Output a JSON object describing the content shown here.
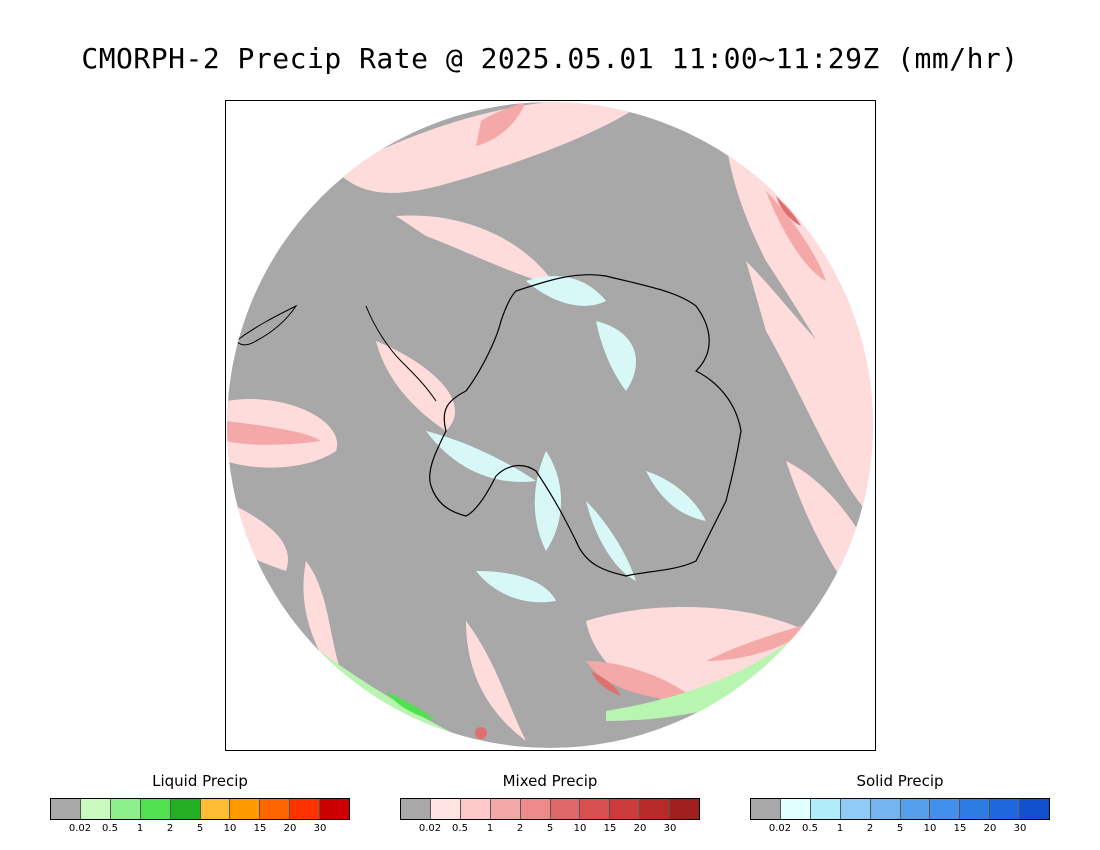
{
  "title": "CMORPH-2 Precip Rate @ 2025.05.01 11:00~11:29Z (mm/hr)",
  "colors": {
    "ocean_no_precip": "#a8a8a8",
    "mixed_light": "#ffdcdc",
    "mixed_mid": "#f5a8a8",
    "mixed_dark": "#e07070",
    "solid_light": "#d8f8f8",
    "liquid_light": "#b8f5b0",
    "liquid_mid": "#50e050",
    "coastline": "#000000"
  },
  "legends": [
    {
      "title": "Liquid Precip",
      "colors": [
        "#a8a8a8",
        "#c8fac0",
        "#8cf08c",
        "#50e050",
        "#22b022",
        "#ffbb33",
        "#ff9900",
        "#ff6600",
        "#ff3300",
        "#cc0000"
      ],
      "ticks": [
        "0.02",
        "0.5",
        "1",
        "2",
        "5",
        "10",
        "15",
        "20",
        "30"
      ]
    },
    {
      "title": "Mixed Precip",
      "colors": [
        "#a8a8a8",
        "#ffe4e4",
        "#fcc8c8",
        "#f5a8a8",
        "#ed8a8a",
        "#e06868",
        "#d85050",
        "#cc3c3c",
        "#b82a2a",
        "#a02020"
      ],
      "ticks": [
        "0.02",
        "0.5",
        "1",
        "2",
        "5",
        "10",
        "15",
        "20",
        "30"
      ]
    },
    {
      "title": "Solid Precip",
      "colors": [
        "#a8a8a8",
        "#e0ffff",
        "#b0ecfa",
        "#90ccf5",
        "#74b4f0",
        "#55a0ec",
        "#4090ec",
        "#2c7ce4",
        "#1c68dc",
        "#1050cc"
      ],
      "ticks": [
        "0.02",
        "0.5",
        "1",
        "2",
        "5",
        "10",
        "15",
        "20",
        "30"
      ]
    }
  ]
}
